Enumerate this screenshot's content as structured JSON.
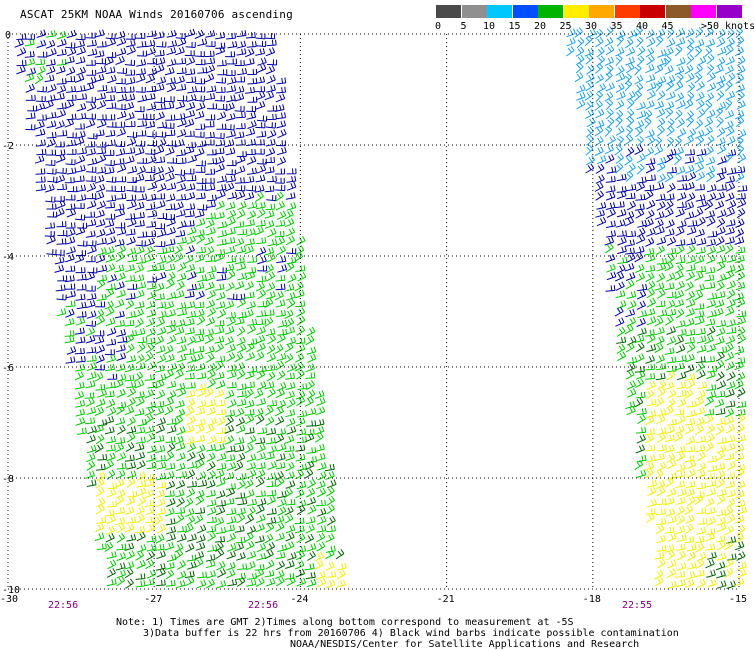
{
  "title": "ASCAT 25KM NOAA Winds 20160706 ascending",
  "legend": {
    "unit_label": ">50 knots",
    "bins": [
      {
        "label": "0",
        "color": "#4a4a4a"
      },
      {
        "label": "5",
        "color": "#8f8f8f"
      },
      {
        "label": "10",
        "color": "#00c8ff"
      },
      {
        "label": "15",
        "color": "#0050ff"
      },
      {
        "label": "20",
        "color": "#00b400"
      },
      {
        "label": "25",
        "color": "#ffee00"
      },
      {
        "label": "30",
        "color": "#ffa800"
      },
      {
        "label": "35",
        "color": "#ff3c00"
      },
      {
        "label": "40",
        "color": "#c80000"
      },
      {
        "label": "45",
        "color": "#8c5a28"
      },
      {
        "label": "",
        "color": "#ff00ff"
      },
      {
        "label": "",
        "color": "#9600c8"
      }
    ]
  },
  "axes": {
    "lon_ticks": [
      "-30",
      "-27",
      "-24",
      "-21",
      "-18",
      "-15"
    ],
    "lat_ticks": [
      "0",
      "-2",
      "-4",
      "-6",
      "-8",
      "-10"
    ]
  },
  "pass_times": [
    "22:56",
    "22:56",
    "22:55"
  ],
  "notes": {
    "line1": "Note: 1) Times are GMT 2)Times along bottom correspond to measurement at -5S",
    "line2": "3)Data buffer is 22 hrs from 20160706 4) Black wind barbs indicate possible contamination",
    "line3": "NOAA/NESDIS/Center for Satellite Applications and Research"
  },
  "colors": {
    "dark_blue": "#0000a0",
    "light_blue": "#1ea0e6",
    "green": "#00c800",
    "dark_green": "#006400",
    "yellow": "#f0f000",
    "grid": "#000000",
    "time_text": "#800080"
  }
}
